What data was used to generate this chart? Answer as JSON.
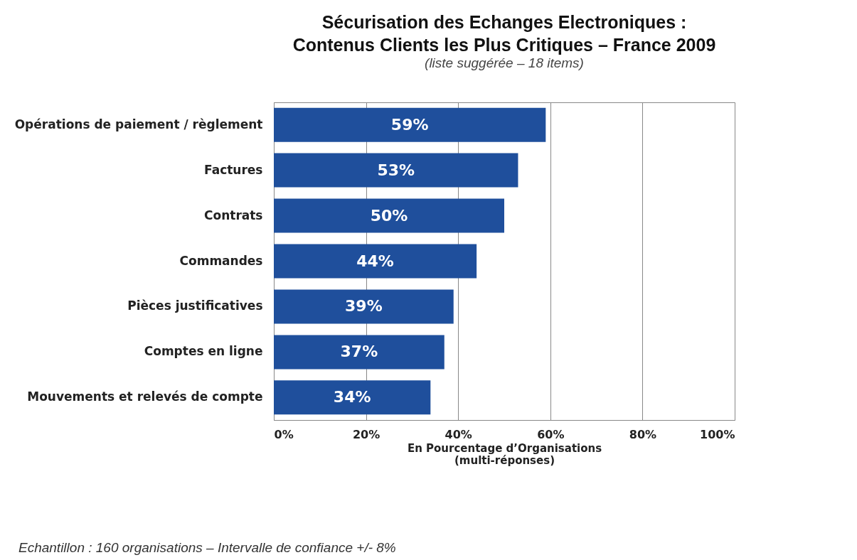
{
  "chart_data": {
    "type": "bar",
    "orientation": "horizontal",
    "title": "Sécurisation des Echanges Electroniques :\nContenus Clients les Plus Critiques – France 2009",
    "subtitle": "(liste suggérée – 18 items)",
    "xlabel": "En Pourcentage d’Organisations\n(multi-réponses)",
    "categories": [
      "Opérations de paiement / règlement",
      "Factures",
      "Contrats",
      "Commandes",
      "Pièces justificatives",
      "Comptes en ligne",
      "Mouvements et relevés de compte"
    ],
    "values": [
      59,
      53,
      50,
      44,
      39,
      37,
      34
    ],
    "value_labels": [
      "59%",
      "53%",
      "50%",
      "44%",
      "39%",
      "37%",
      "34%"
    ],
    "color": "#1f4f9c",
    "xlim": [
      0,
      100
    ],
    "xticks": [
      {
        "value": 0,
        "label": "0%"
      },
      {
        "value": 20,
        "label": "20%"
      },
      {
        "value": 40,
        "label": "40%"
      },
      {
        "value": 60,
        "label": "60%"
      },
      {
        "value": 80,
        "label": "80%"
      },
      {
        "value": 100,
        "label": "100%"
      }
    ],
    "grid": "x",
    "annotations": [
      "Echantillon : 160 organisations – Intervalle de confiance +/- 8%"
    ]
  }
}
